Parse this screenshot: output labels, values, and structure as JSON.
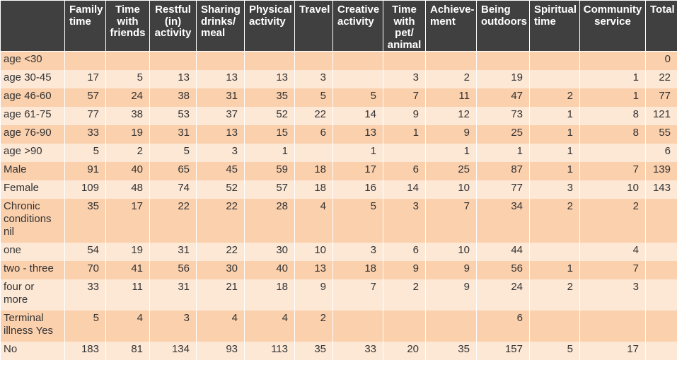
{
  "headers": [
    "",
    "Family time",
    "Time with friends",
    "Restful (in) activity",
    "Sharing drinks/ meal",
    "Physical activity",
    "Travel",
    "Creative activity",
    "Time with pet/ animal",
    "Achieve-ment",
    "Being outdoors",
    "Spiritual time",
    "Community service",
    "Total"
  ],
  "rows": [
    {
      "label": "age <30",
      "cells": [
        "",
        "",
        "",
        "",
        "",
        "",
        "",
        "",
        "",
        "",
        "",
        "",
        "0"
      ]
    },
    {
      "label": "age 30-45",
      "cells": [
        "17",
        "5",
        "13",
        "13",
        "13",
        "3",
        "",
        "3",
        "2",
        "19",
        "",
        "1",
        "22"
      ]
    },
    {
      "label": "age 46-60",
      "cells": [
        "57",
        "24",
        "38",
        "31",
        "35",
        "5",
        "5",
        "7",
        "11",
        "47",
        "2",
        "1",
        "77"
      ]
    },
    {
      "label": "age 61-75",
      "cells": [
        "77",
        "38",
        "53",
        "37",
        "52",
        "22",
        "14",
        "9",
        "12",
        "73",
        "1",
        "8",
        "121"
      ]
    },
    {
      "label": "age 76-90",
      "cells": [
        "33",
        "19",
        "31",
        "13",
        "15",
        "6",
        "13",
        "1",
        "9",
        "25",
        "1",
        "8",
        "55"
      ]
    },
    {
      "label": "age >90",
      "cells": [
        "5",
        "2",
        "5",
        "3",
        "1",
        "",
        "1",
        "",
        "1",
        "1",
        "1",
        "",
        "6"
      ]
    },
    {
      "label": "Male",
      "cells": [
        "91",
        "40",
        "65",
        "45",
        "59",
        "18",
        "17",
        "6",
        "25",
        "87",
        "1",
        "7",
        "139"
      ]
    },
    {
      "label": "Female",
      "cells": [
        "109",
        "48",
        "74",
        "52",
        "57",
        "18",
        "16",
        "14",
        "10",
        "77",
        "3",
        "10",
        "143"
      ]
    },
    {
      "label": "Chronic conditions nil",
      "cells": [
        "35",
        "17",
        "22",
        "22",
        "28",
        "4",
        "5",
        "3",
        "7",
        "34",
        "2",
        "2",
        ""
      ]
    },
    {
      "label": "one",
      "cells": [
        "54",
        "19",
        "31",
        "22",
        "30",
        "10",
        "3",
        "6",
        "10",
        "44",
        "",
        "4",
        ""
      ]
    },
    {
      "label": "two - three",
      "cells": [
        "70",
        "41",
        "56",
        "30",
        "40",
        "13",
        "18",
        "9",
        "9",
        "56",
        "1",
        "7",
        ""
      ]
    },
    {
      "label": "four or more",
      "cells": [
        "33",
        "11",
        "31",
        "21",
        "18",
        "9",
        "7",
        "2",
        "9",
        "24",
        "2",
        "3",
        ""
      ]
    },
    {
      "label": "Terminal illness Yes",
      "cells": [
        "5",
        "4",
        "3",
        "4",
        "4",
        "2",
        "",
        "",
        "",
        "6",
        "",
        "",
        ""
      ]
    },
    {
      "label": "No",
      "cells": [
        "183",
        "81",
        "134",
        "93",
        "113",
        "35",
        "33",
        "20",
        "35",
        "157",
        "5",
        "17",
        ""
      ]
    }
  ],
  "colors": {
    "header_bg": "#404041",
    "row_dark": "#fbd0ad",
    "row_light": "#fde8d6",
    "text": "#333333"
  }
}
